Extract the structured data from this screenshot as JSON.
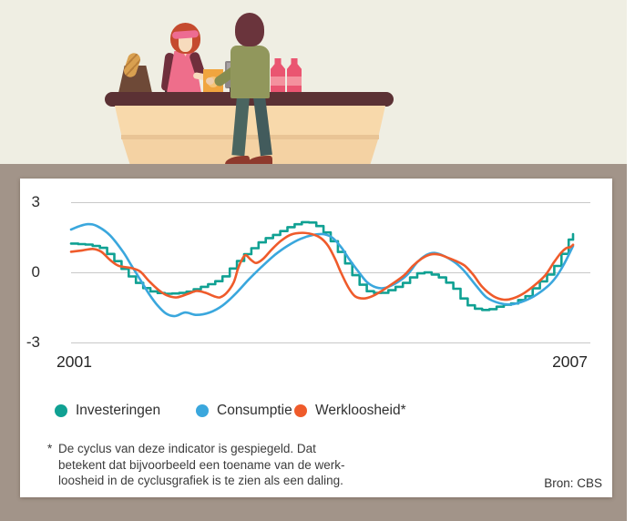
{
  "illustration": {
    "description": "cashier and customer at a shop counter with bread bag, card terminal, register monitor and two pink bottles"
  },
  "chart": {
    "y_tick_labels": [
      "3",
      "0",
      "-3"
    ],
    "x_axis_start": "2001",
    "x_axis_end": "2007"
  },
  "legend": {
    "items": [
      {
        "label": "Investeringen",
        "color": "#10a193"
      },
      {
        "label": "Consumptie",
        "color": "#3aa7dd"
      },
      {
        "label": "Werkloosheid*",
        "color": "#ef5b2b"
      }
    ]
  },
  "footnote": {
    "marker": "*",
    "lines": [
      "De cyclus van deze indicator is gespiegeld. Dat",
      "betekent dat bijvoorbeeld een toename van de werk-",
      "loosheid in de cyclusgrafiek is te zien als een daling."
    ]
  },
  "source": "Bron: CBS",
  "chart_data": {
    "type": "line",
    "title": "",
    "xlabel": "",
    "ylabel": "",
    "x_range": [
      2001,
      2007
    ],
    "ylim": [
      -3,
      3
    ],
    "y_ticks": [
      3,
      0,
      -3
    ],
    "grid": "horizontal-only",
    "legend_position": "bottom",
    "gridline_color": "#c8c8c8",
    "series": [
      {
        "name": "Investeringen",
        "color": "#10a193",
        "line_style": "stepped",
        "points": [
          [
            2001.0,
            1.25
          ],
          [
            2001.2,
            1.2
          ],
          [
            2001.35,
            1.05
          ],
          [
            2001.5,
            0.5
          ],
          [
            2001.65,
            -0.1
          ],
          [
            2001.8,
            -0.6
          ],
          [
            2001.95,
            -0.85
          ],
          [
            2002.1,
            -0.9
          ],
          [
            2002.3,
            -0.85
          ],
          [
            2002.5,
            -0.6
          ],
          [
            2002.65,
            -0.4
          ],
          [
            2002.75,
            -0.15
          ],
          [
            2002.9,
            0.45
          ],
          [
            2003.0,
            0.8
          ],
          [
            2003.1,
            1.1
          ],
          [
            2003.2,
            1.4
          ],
          [
            2003.35,
            1.65
          ],
          [
            2003.5,
            1.95
          ],
          [
            2003.6,
            2.1
          ],
          [
            2003.7,
            2.2
          ],
          [
            2003.8,
            2.1
          ],
          [
            2003.9,
            1.8
          ],
          [
            2004.0,
            1.35
          ],
          [
            2004.1,
            0.8
          ],
          [
            2004.2,
            0.2
          ],
          [
            2004.3,
            -0.4
          ],
          [
            2004.42,
            -0.8
          ],
          [
            2004.55,
            -0.9
          ],
          [
            2004.7,
            -0.7
          ],
          [
            2004.85,
            -0.4
          ],
          [
            2004.95,
            -0.1
          ],
          [
            2005.05,
            0.05
          ],
          [
            2005.15,
            -0.05
          ],
          [
            2005.25,
            -0.2
          ],
          [
            2005.4,
            -0.6
          ],
          [
            2005.5,
            -1.1
          ],
          [
            2005.6,
            -1.45
          ],
          [
            2005.72,
            -1.6
          ],
          [
            2005.85,
            -1.55
          ],
          [
            2005.95,
            -1.4
          ],
          [
            2006.1,
            -1.3
          ],
          [
            2006.25,
            -1.0
          ],
          [
            2006.35,
            -0.6
          ],
          [
            2006.45,
            -0.25
          ],
          [
            2006.55,
            0.1
          ],
          [
            2006.62,
            0.5
          ],
          [
            2006.68,
            0.9
          ],
          [
            2006.73,
            1.3
          ],
          [
            2006.78,
            1.6
          ],
          [
            2006.8,
            1.65
          ]
        ]
      },
      {
        "name": "Consumptie",
        "color": "#3aa7dd",
        "line_style": "smooth",
        "points": [
          [
            2001.0,
            1.85
          ],
          [
            2001.1,
            2.0
          ],
          [
            2001.2,
            2.08
          ],
          [
            2001.3,
            2.0
          ],
          [
            2001.45,
            1.6
          ],
          [
            2001.6,
            0.9
          ],
          [
            2001.7,
            0.3
          ],
          [
            2001.8,
            -0.3
          ],
          [
            2001.9,
            -0.9
          ],
          [
            2002.0,
            -1.4
          ],
          [
            2002.1,
            -1.75
          ],
          [
            2002.2,
            -1.85
          ],
          [
            2002.32,
            -1.7
          ],
          [
            2002.45,
            -1.8
          ],
          [
            2002.6,
            -1.7
          ],
          [
            2002.75,
            -1.4
          ],
          [
            2002.9,
            -0.9
          ],
          [
            2003.05,
            -0.3
          ],
          [
            2003.2,
            0.25
          ],
          [
            2003.35,
            0.75
          ],
          [
            2003.5,
            1.15
          ],
          [
            2003.65,
            1.45
          ],
          [
            2003.8,
            1.62
          ],
          [
            2003.92,
            1.65
          ],
          [
            2004.02,
            1.5
          ],
          [
            2004.12,
            1.1
          ],
          [
            2004.22,
            0.55
          ],
          [
            2004.32,
            0.05
          ],
          [
            2004.42,
            -0.4
          ],
          [
            2004.52,
            -0.62
          ],
          [
            2004.62,
            -0.65
          ],
          [
            2004.75,
            -0.45
          ],
          [
            2004.88,
            -0.1
          ],
          [
            2005.0,
            0.45
          ],
          [
            2005.1,
            0.75
          ],
          [
            2005.2,
            0.85
          ],
          [
            2005.32,
            0.7
          ],
          [
            2005.45,
            0.4
          ],
          [
            2005.55,
            0.05
          ],
          [
            2005.68,
            -0.55
          ],
          [
            2005.8,
            -1.05
          ],
          [
            2005.95,
            -1.3
          ],
          [
            2006.08,
            -1.35
          ],
          [
            2006.2,
            -1.25
          ],
          [
            2006.35,
            -1.0
          ],
          [
            2006.5,
            -0.6
          ],
          [
            2006.6,
            -0.2
          ],
          [
            2006.7,
            0.4
          ],
          [
            2006.8,
            1.15
          ]
        ]
      },
      {
        "name": "Werkloosheid (gespiegeld)",
        "color": "#ef5b2b",
        "line_style": "smooth",
        "points": [
          [
            2001.0,
            0.9
          ],
          [
            2001.12,
            0.95
          ],
          [
            2001.25,
            1.02
          ],
          [
            2001.35,
            0.9
          ],
          [
            2001.45,
            0.55
          ],
          [
            2001.55,
            0.3
          ],
          [
            2001.7,
            0.2
          ],
          [
            2001.8,
            0.05
          ],
          [
            2001.9,
            -0.35
          ],
          [
            2002.0,
            -0.7
          ],
          [
            2002.1,
            -0.95
          ],
          [
            2002.22,
            -1.05
          ],
          [
            2002.35,
            -0.9
          ],
          [
            2002.45,
            -0.78
          ],
          [
            2002.55,
            -0.85
          ],
          [
            2002.65,
            -1.0
          ],
          [
            2002.72,
            -1.05
          ],
          [
            2002.8,
            -0.85
          ],
          [
            2002.88,
            -0.4
          ],
          [
            2002.93,
            0.2
          ],
          [
            2002.98,
            0.6
          ],
          [
            2003.02,
            0.75
          ],
          [
            2003.08,
            0.55
          ],
          [
            2003.14,
            0.42
          ],
          [
            2003.22,
            0.6
          ],
          [
            2003.32,
            1.0
          ],
          [
            2003.42,
            1.35
          ],
          [
            2003.52,
            1.6
          ],
          [
            2003.62,
            1.7
          ],
          [
            2003.75,
            1.68
          ],
          [
            2003.88,
            1.5
          ],
          [
            2003.97,
            1.15
          ],
          [
            2004.05,
            0.6
          ],
          [
            2004.12,
            0.0
          ],
          [
            2004.2,
            -0.6
          ],
          [
            2004.28,
            -1.0
          ],
          [
            2004.38,
            -1.1
          ],
          [
            2004.48,
            -1.0
          ],
          [
            2004.6,
            -0.75
          ],
          [
            2004.72,
            -0.45
          ],
          [
            2004.85,
            -0.1
          ],
          [
            2004.95,
            0.3
          ],
          [
            2005.05,
            0.6
          ],
          [
            2005.15,
            0.78
          ],
          [
            2005.25,
            0.78
          ],
          [
            2005.35,
            0.65
          ],
          [
            2005.45,
            0.5
          ],
          [
            2005.55,
            0.3
          ],
          [
            2005.65,
            -0.1
          ],
          [
            2005.75,
            -0.6
          ],
          [
            2005.88,
            -1.0
          ],
          [
            2006.0,
            -1.15
          ],
          [
            2006.1,
            -1.1
          ],
          [
            2006.22,
            -0.9
          ],
          [
            2006.35,
            -0.55
          ],
          [
            2006.48,
            -0.1
          ],
          [
            2006.58,
            0.45
          ],
          [
            2006.66,
            0.85
          ],
          [
            2006.72,
            1.05
          ],
          [
            2006.77,
            1.1
          ],
          [
            2006.8,
            1.2
          ]
        ]
      }
    ]
  }
}
